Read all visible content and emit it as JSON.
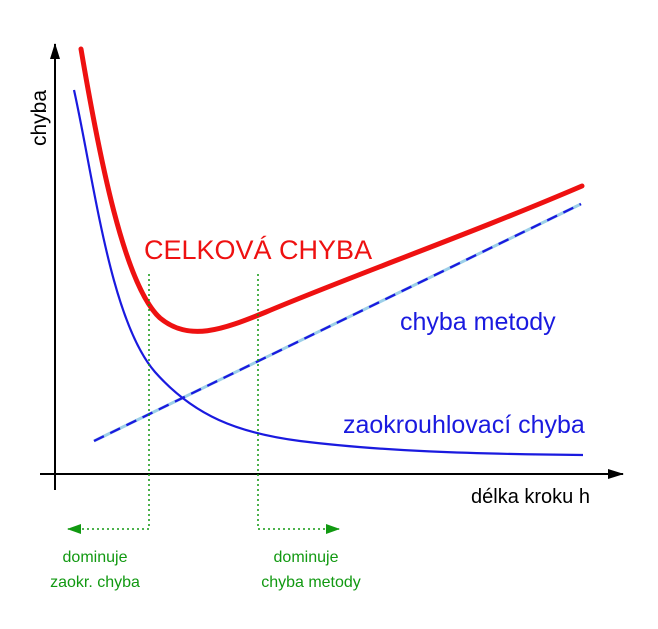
{
  "diagram": {
    "axis": {
      "y_label": "chyba",
      "x_label": "délka kroku h"
    },
    "curves": {
      "total_label": "CELKOVÁ CHYBA",
      "method_label": "chyba metody",
      "rounding_label": "zaokrouhlovací chyba"
    },
    "regions": {
      "left_line1": "dominuje",
      "left_line2": "zaokr. chyba",
      "right_line1": "dominuje",
      "right_line2": "chyba metody"
    },
    "colors": {
      "total": "#ee1111",
      "method": "#1a1adf",
      "method_dash_highlight": "#9ccfe8",
      "rounding": "#1a1adf",
      "axis": "#000000",
      "region": "#119911"
    }
  }
}
